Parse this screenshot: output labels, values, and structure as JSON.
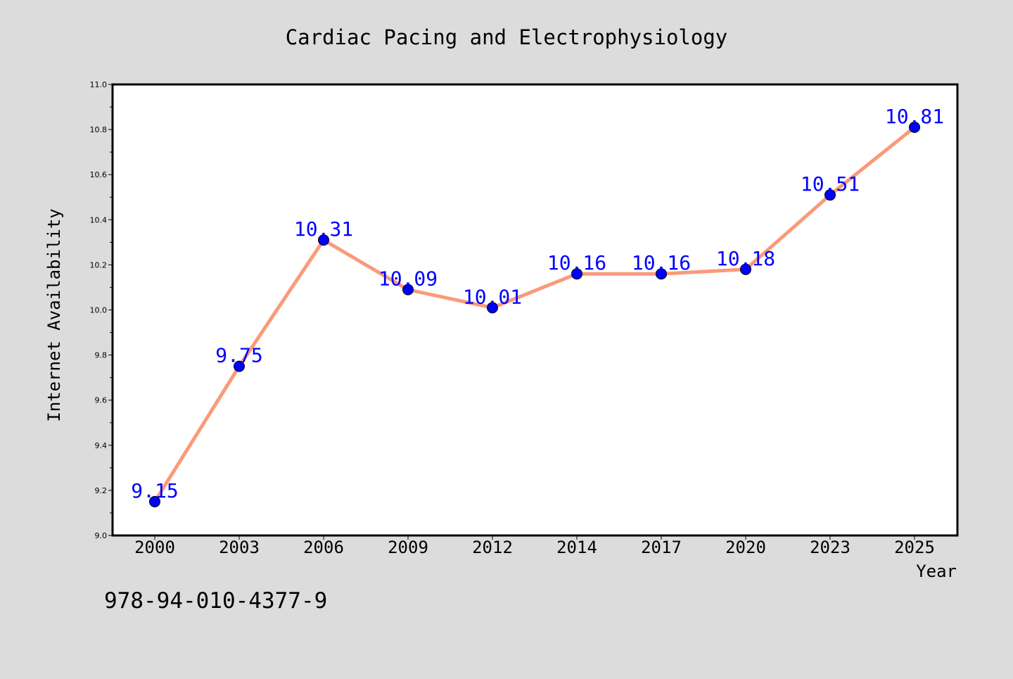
{
  "chart_data": {
    "type": "line",
    "title": "Cardiac Pacing and Electrophysiology",
    "xlabel": "Year",
    "ylabel": "Internet Availability",
    "categories": [
      "2000",
      "2003",
      "2006",
      "2009",
      "2012",
      "2014",
      "2017",
      "2020",
      "2023",
      "2025"
    ],
    "series": [
      {
        "values": [
          9.15,
          9.75,
          10.31,
          10.09,
          10.01,
          10.16,
          10.16,
          10.18,
          10.51,
          10.81
        ],
        "data_labels": [
          "9.15",
          "9.75",
          "10.31",
          "10.09",
          "10.01",
          "10.16",
          "10.16",
          "10.18",
          "10.51",
          "10.81"
        ]
      }
    ],
    "ylim": [
      9.0,
      11.0
    ],
    "yticks": [
      "9.0",
      "9.2",
      "9.4",
      "9.6",
      "9.8",
      "10.0",
      "10.2",
      "10.4",
      "10.6",
      "10.8",
      "11.0"
    ],
    "grid": false,
    "legend": "none",
    "colors": {
      "line": "#fa9a7a",
      "marker_fill": "#0000ff",
      "marker_stroke": "#000000",
      "data_label": "#0000ff",
      "background": "#dcdcdc",
      "plot_background": "#ffffff"
    }
  },
  "footnote": "978-94-010-4377-9"
}
